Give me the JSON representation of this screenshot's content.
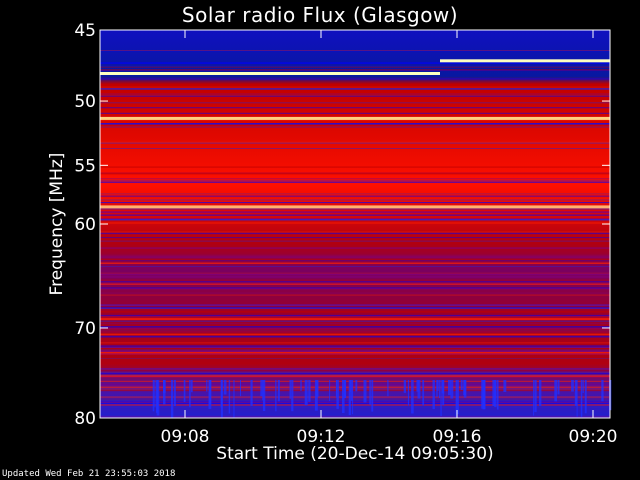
{
  "chart_data": {
    "type": "heatmap",
    "title": "Solar radio Flux (Glasgow)",
    "xlabel": "Start Time (20-Dec-14 09:05:30)",
    "ylabel": "Frequency [MHz]",
    "x_range": [
      "09:05:30",
      "09:20:30"
    ],
    "y_range_mhz": [
      45,
      80
    ],
    "x_ticks": [
      "09:08",
      "09:12",
      "09:16",
      "09:20"
    ],
    "y_ticks": [
      "45",
      "50",
      "55",
      "60",
      "70",
      "80"
    ],
    "y_scale": "log",
    "bright_lines_mhz": [
      48.0,
      51.3,
      58.5,
      47.1
    ],
    "colormap": [
      "#0000ff",
      "#3020d0",
      "#800080",
      "#c00000",
      "#ff2000",
      "#ffa040",
      "#ffffc0"
    ]
  },
  "footer": "Updated Wed Feb 21 23:55:03 2018"
}
